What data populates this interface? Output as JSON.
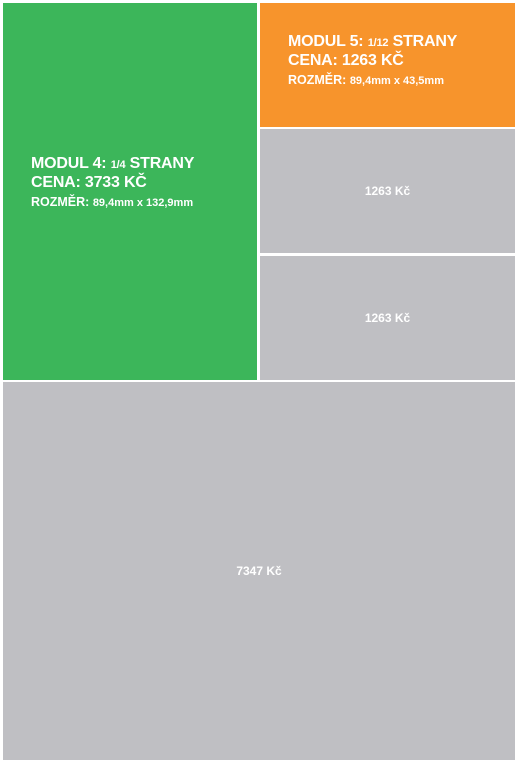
{
  "modules": {
    "module4": {
      "title_prefix": "MODUL 4:",
      "fraction": "1/4",
      "title_suffix": "STRANY",
      "price_line": "CENA: 3733 KČ",
      "size_label": "ROZMĚR:",
      "size_value": "89,4mm x 132,9mm",
      "color": "#3cb65a"
    },
    "module5": {
      "title_prefix": "MODUL 5:",
      "fraction": "1/12",
      "title_suffix": "STRANY",
      "price_line": "CENA: 1263 KČ",
      "size_label": "ROZMĚR:",
      "size_value": "89,4mm x 43,5mm",
      "color": "#f7942c"
    }
  },
  "other_slots": {
    "slot_a_price": "1263 Kč",
    "slot_b_price": "1263 Kč",
    "slot_large_price": "7347 Kč",
    "color": "#bfbfc3"
  }
}
